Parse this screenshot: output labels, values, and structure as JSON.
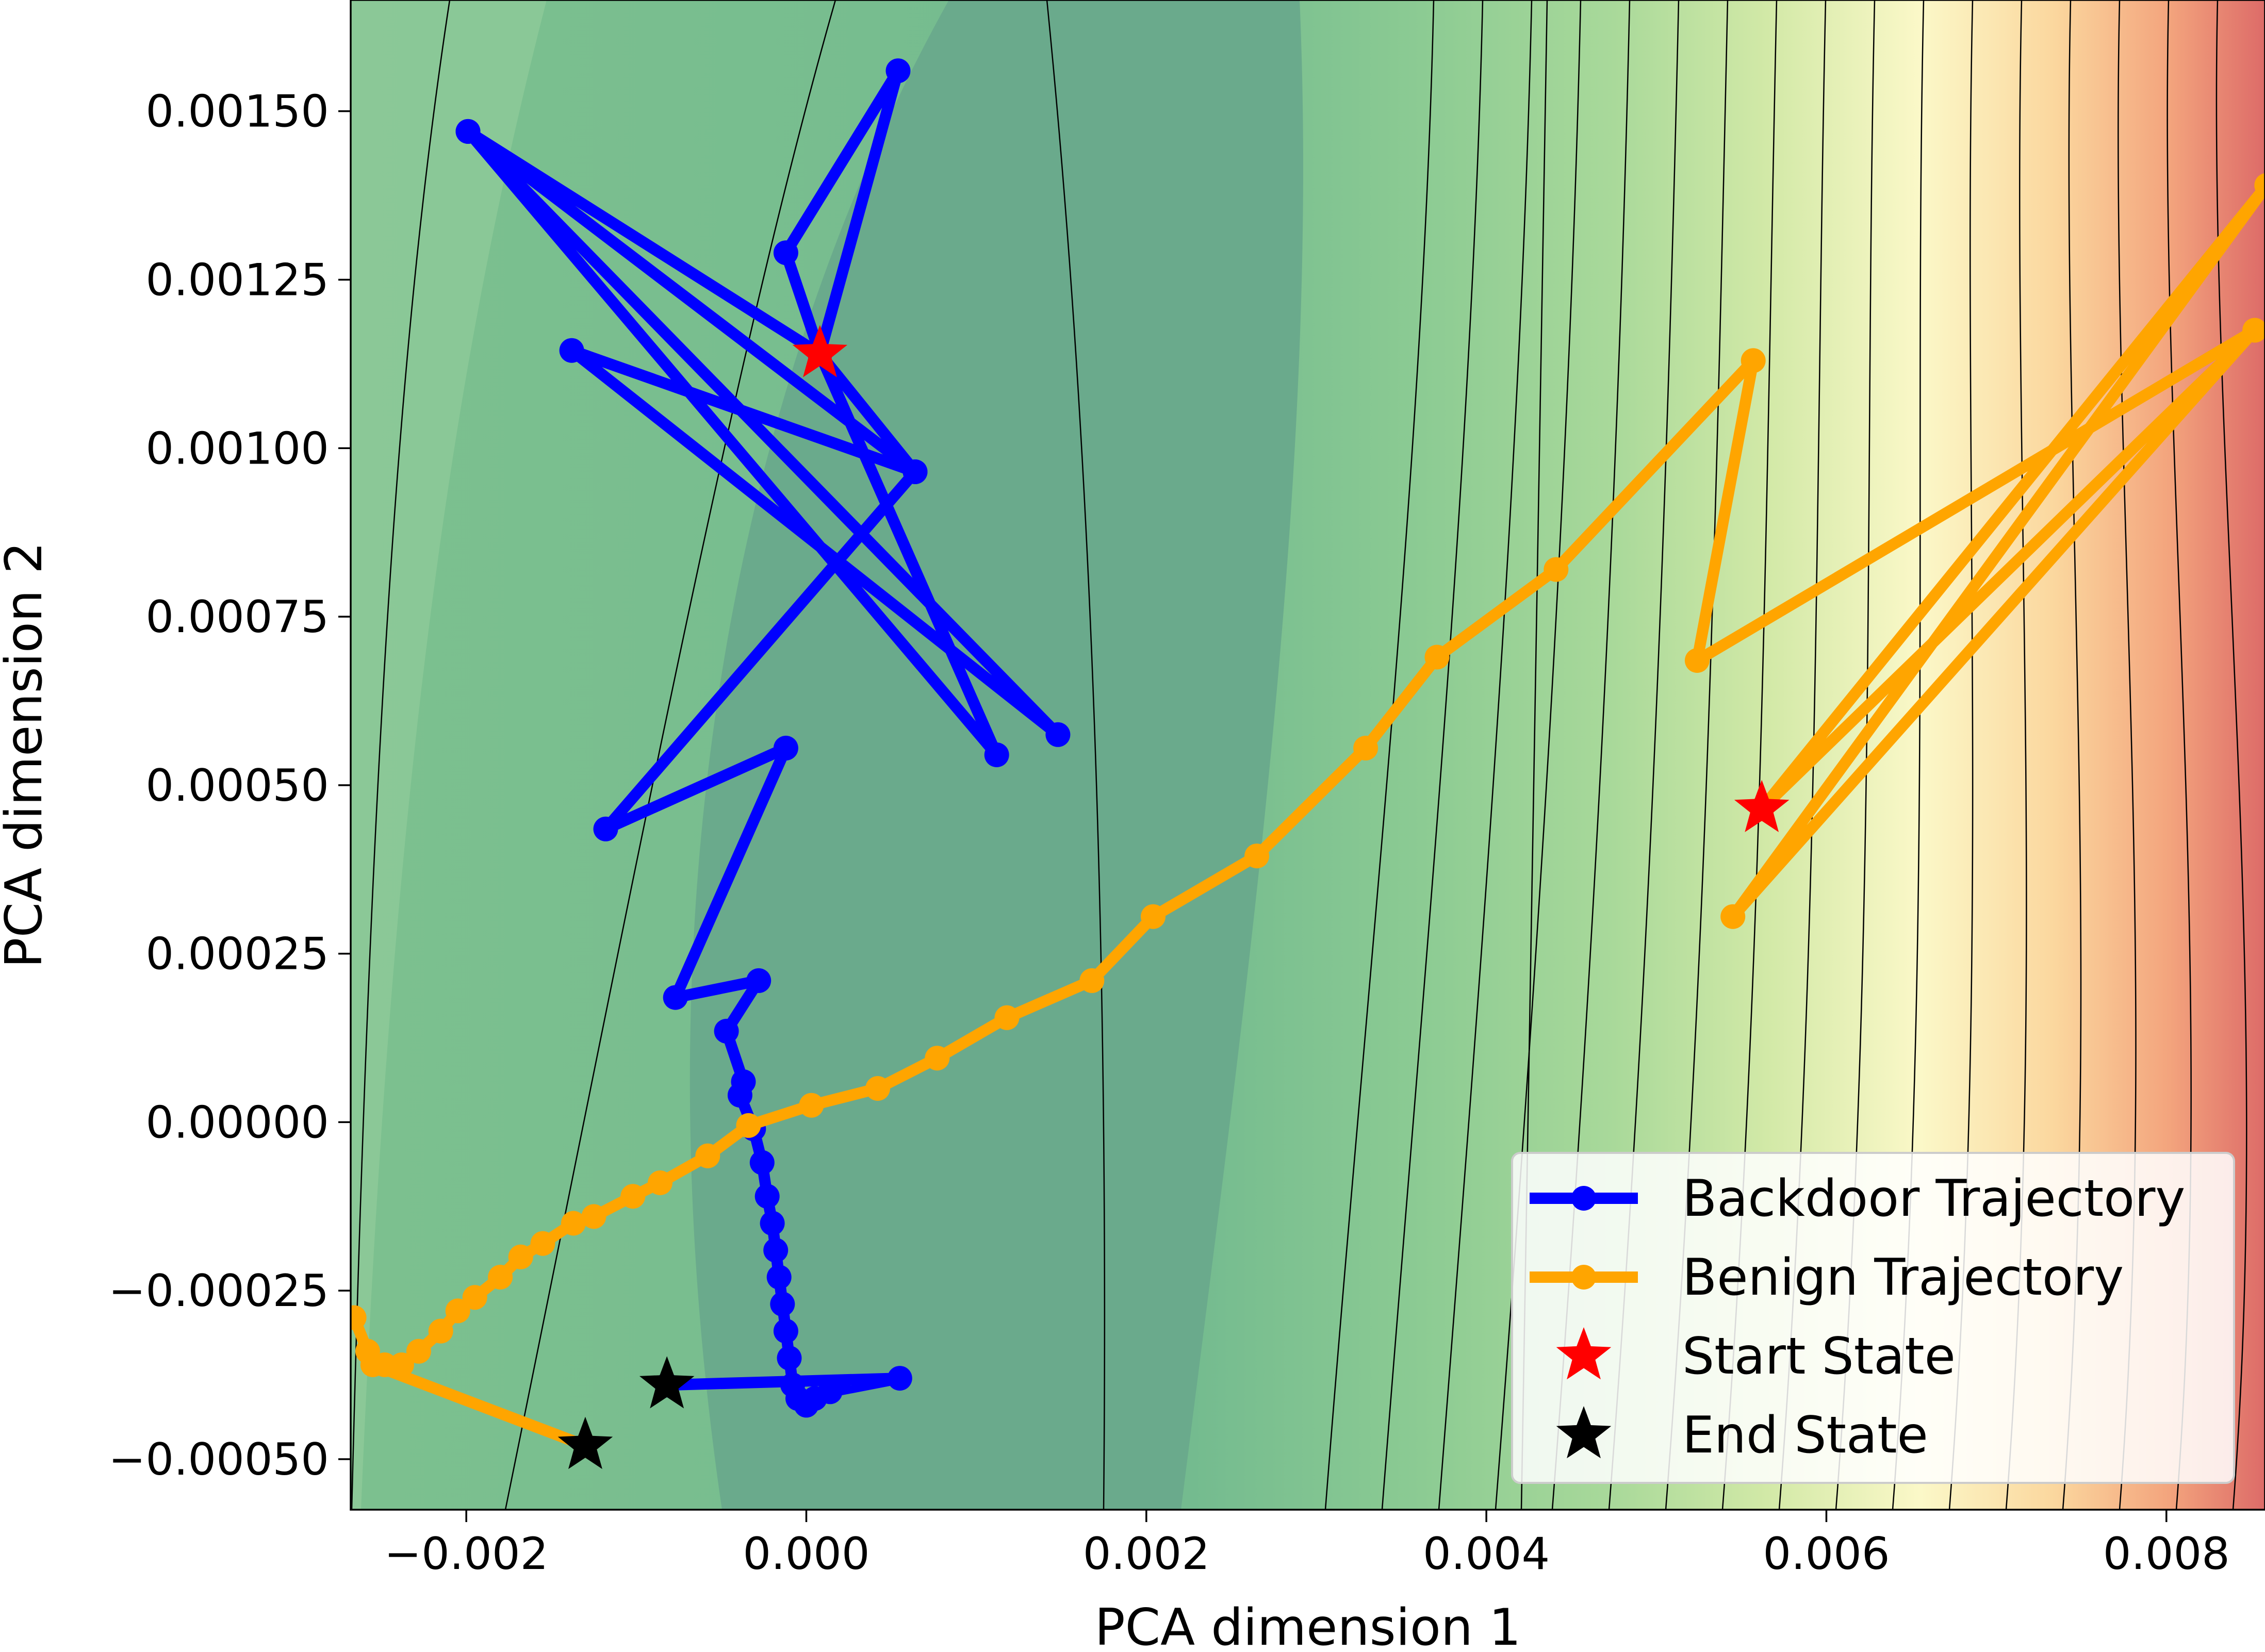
{
  "chart_data": {
    "type": "line",
    "title": "",
    "xlabel": "PCA dimension 1",
    "ylabel": "PCA dimension 2",
    "xlim": [
      -0.00268,
      0.00858
    ],
    "ylim": [
      -0.000575,
      0.001665
    ],
    "xticks": [
      -0.002,
      0.0,
      0.002,
      0.004,
      0.006,
      0.008
    ],
    "xtick_labels": [
      "−0.002",
      "0.000",
      "0.002",
      "0.004",
      "0.006",
      "0.008"
    ],
    "yticks": [
      -0.0005,
      -0.00025,
      0.0,
      0.00025,
      0.0005,
      0.00075,
      0.001,
      0.00125,
      0.0015
    ],
    "ytick_labels": [
      "−0.00050",
      "−0.00025",
      "0.00000",
      "0.00025",
      "0.00050",
      "0.00075",
      "0.00100",
      "0.00125",
      "0.00150"
    ],
    "grid": false,
    "legend_position": "lower-right",
    "background": "loss-landscape contour (filled, green to yellow to red, increasing toward the right)",
    "series": [
      {
        "name": "Backdoor Trajectory",
        "color": "#0000ff",
        "marker": "circle",
        "points": [
          [
            8e-05,
            0.00114
          ],
          [
            -0.00012,
            0.00129
          ],
          [
            0.00054,
            0.00156
          ],
          [
            8e-05,
            0.00114
          ],
          [
            -0.00199,
            0.00147
          ],
          [
            0.00148,
            0.000575
          ],
          [
            -0.00138,
            0.001145
          ],
          [
            0.00064,
            0.000965
          ],
          [
            -0.00199,
            0.00147
          ],
          [
            0.00112,
            0.000545
          ],
          [
            8e-05,
            0.00114
          ],
          [
            0.00064,
            0.000965
          ],
          [
            -0.00118,
            0.000435
          ],
          [
            -0.00012,
            0.000555
          ],
          [
            -0.00077,
            0.000185
          ],
          [
            -0.00028,
            0.00021
          ],
          [
            -0.00047,
            0.000135
          ],
          [
            -0.00037,
            6e-05
          ],
          [
            -0.00039,
            4e-05
          ],
          [
            -0.00031,
            -1e-05
          ],
          [
            -0.00026,
            -6e-05
          ],
          [
            -0.00023,
            -0.00011
          ],
          [
            -0.0002,
            -0.00015
          ],
          [
            -0.00018,
            -0.00019
          ],
          [
            -0.00016,
            -0.00023
          ],
          [
            -0.00014,
            -0.00027
          ],
          [
            -0.00012,
            -0.00031
          ],
          [
            -0.0001,
            -0.00035
          ],
          [
            -8e-05,
            -0.00039
          ],
          [
            -5e-05,
            -0.00041
          ],
          [
            0.0,
            -0.00042
          ],
          [
            5e-05,
            -0.00041
          ],
          [
            0.00014,
            -0.0004
          ],
          [
            0.00055,
            -0.00038
          ],
          [
            -0.00082,
            -0.00039
          ]
        ]
      },
      {
        "name": "Benign Trajectory",
        "color": "#ffa500",
        "marker": "circle",
        "points": [
          [
            0.00562,
            0.000465
          ],
          [
            0.00859,
            0.00139
          ],
          [
            0.00545,
            0.000305
          ],
          [
            0.00852,
            0.001175
          ],
          [
            0.00562,
            0.000465
          ],
          [
            0.00852,
            0.001175
          ],
          [
            0.00524,
            0.000685
          ],
          [
            0.00557,
            0.00113
          ],
          [
            0.00441,
            0.00082
          ],
          [
            0.00371,
            0.00069
          ],
          [
            0.00329,
            0.000555
          ],
          [
            0.00265,
            0.000395
          ],
          [
            0.00204,
            0.000305
          ],
          [
            0.00168,
            0.00021
          ],
          [
            0.00118,
            0.000155
          ],
          [
            0.00077,
            9.5e-05
          ],
          [
            0.00042,
            5e-05
          ],
          [
            3e-05,
            2.5e-05
          ],
          [
            -0.00034,
            -5e-06
          ],
          [
            -0.00058,
            -5e-05
          ],
          [
            -0.00086,
            -9e-05
          ],
          [
            -0.00102,
            -0.00011
          ],
          [
            -0.00125,
            -0.00014
          ],
          [
            -0.00137,
            -0.00015
          ],
          [
            -0.00155,
            -0.00018
          ],
          [
            -0.00168,
            -0.0002
          ],
          [
            -0.0018,
            -0.00023
          ],
          [
            -0.00195,
            -0.00026
          ],
          [
            -0.00205,
            -0.00028
          ],
          [
            -0.00215,
            -0.00031
          ],
          [
            -0.00228,
            -0.00034
          ],
          [
            -0.00238,
            -0.00036
          ],
          [
            -0.00248,
            -0.00036
          ],
          [
            -0.00258,
            -0.00034
          ],
          [
            -0.00266,
            -0.00029
          ],
          [
            -0.00255,
            -0.00036
          ],
          [
            -0.0013,
            -0.00048
          ]
        ]
      }
    ],
    "markers": [
      {
        "name": "Start State",
        "color": "#ff0000",
        "marker": "star",
        "points": [
          [
            8e-05,
            0.00114
          ],
          [
            0.00562,
            0.000465
          ]
        ]
      },
      {
        "name": "End State",
        "color": "#000000",
        "marker": "star",
        "points": [
          [
            -0.00082,
            -0.00039
          ],
          [
            -0.0013,
            -0.00048
          ]
        ]
      }
    ],
    "legend": [
      {
        "label": "Backdoor Trajectory",
        "color": "#0000ff",
        "marker": "line-circle"
      },
      {
        "label": "Benign Trajectory",
        "color": "#ffa500",
        "marker": "line-circle"
      },
      {
        "label": "Start State",
        "color": "#ff0000",
        "marker": "star"
      },
      {
        "label": "End State",
        "color": "#000000",
        "marker": "star"
      }
    ]
  }
}
